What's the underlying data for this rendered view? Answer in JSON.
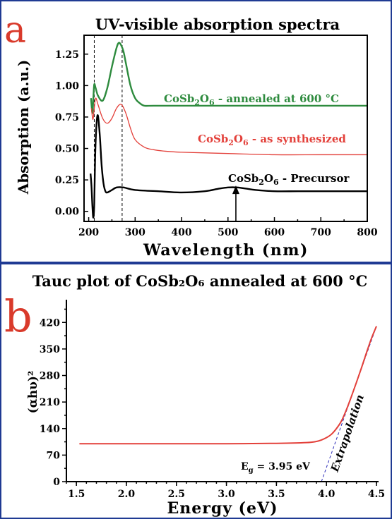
{
  "chart_data": [
    {
      "type": "line",
      "panel_label": "a",
      "title": "UV-visible absorption spectra",
      "xlabel": "Wavelength (nm)",
      "ylabel": "Absorption (a.u.)",
      "xlim": [
        190,
        800
      ],
      "ylim": [
        -0.08,
        1.4
      ],
      "xticks": [
        "200",
        "300",
        "400",
        "500",
        "600",
        "700",
        "800"
      ],
      "yticks": [
        "0.00",
        "0.25",
        "0.50",
        "0.75",
        "1.00",
        "1.25"
      ],
      "vlines": [
        212,
        272
      ],
      "arrow_at_x": 517,
      "series": [
        {
          "name": "CoSb2O6 - annealed at 600 °C",
          "label_main": "CoSb",
          "label_sub1": "2",
          "label_mid": "O",
          "label_sub2": "6",
          "label_tail": " - annealed at 600 °C",
          "color": "#2e8b3e",
          "x": [
            205,
            208,
            210,
            212,
            215,
            220,
            230,
            240,
            250,
            260,
            265,
            270,
            275,
            280,
            290,
            300,
            310,
            320,
            340,
            400,
            500,
            600,
            700,
            800
          ],
          "y": [
            0.9,
            0.78,
            0.9,
            1.01,
            0.98,
            0.92,
            0.88,
            0.98,
            1.15,
            1.3,
            1.34,
            1.32,
            1.27,
            1.18,
            1.0,
            0.9,
            0.86,
            0.84,
            0.84,
            0.84,
            0.84,
            0.84,
            0.84,
            0.84
          ]
        },
        {
          "name": "CoSb2O6 - as synthesized",
          "label_main": "CoSb",
          "label_sub1": "2",
          "label_mid": "O",
          "label_sub2": "6",
          "label_tail": " - as synthesized",
          "color": "#e3403a",
          "x": [
            206,
            209,
            212,
            215,
            220,
            230,
            240,
            250,
            260,
            270,
            280,
            290,
            300,
            320,
            340,
            360,
            400,
            500,
            600,
            700,
            800
          ],
          "y": [
            0.82,
            0.73,
            0.82,
            0.9,
            0.85,
            0.74,
            0.7,
            0.74,
            0.82,
            0.85,
            0.78,
            0.66,
            0.57,
            0.51,
            0.49,
            0.48,
            0.47,
            0.46,
            0.45,
            0.45,
            0.45
          ]
        },
        {
          "name": "CoSb2O6 - Precursor",
          "label_main": "CoSb",
          "label_sub1": "2",
          "label_mid": "O",
          "label_sub2": "6",
          "label_tail": " - Precursor",
          "color": "#000000",
          "x": [
            204,
            206,
            208,
            210,
            212,
            214,
            217,
            220,
            224,
            228,
            232,
            236,
            240,
            250,
            260,
            275,
            300,
            350,
            400,
            450,
            480,
            500,
            520,
            540,
            560,
            600,
            650,
            700,
            800
          ],
          "y": [
            0.3,
            0.2,
            0.04,
            -0.05,
            0.06,
            0.45,
            0.7,
            0.76,
            0.6,
            0.36,
            0.22,
            0.16,
            0.15,
            0.17,
            0.19,
            0.19,
            0.17,
            0.16,
            0.15,
            0.16,
            0.18,
            0.19,
            0.19,
            0.18,
            0.17,
            0.16,
            0.16,
            0.16,
            0.16
          ]
        }
      ]
    },
    {
      "type": "line",
      "panel_label": "b",
      "title": "Tauc plot of CoSb₂O₆ annealed at 600 °C",
      "xlabel": "Energy (eV)",
      "ylabel": "(αhυ)²",
      "xlim": [
        1.4,
        4.5
      ],
      "ylim": [
        0,
        480
      ],
      "xticks": [
        "1.5",
        "2.0",
        "2.5",
        "3.0",
        "3.5",
        "4.0",
        "4.5"
      ],
      "yticks": [
        "0",
        "70",
        "140",
        "210",
        "280",
        "350",
        "420"
      ],
      "annotation_eg": "E",
      "annotation_eg_sub": "g",
      "annotation_eg_val": " = 3.95 eV",
      "annotation_extrap": "Extrapolation",
      "extrapolation": {
        "x": [
          3.95,
          4.5
        ],
        "y": [
          0,
          410
        ]
      },
      "series": [
        {
          "color": "#e3403a",
          "x": [
            1.53,
            2.0,
            2.5,
            3.0,
            3.5,
            3.8,
            3.9,
            3.95,
            4.0,
            4.05,
            4.1,
            4.15,
            4.2,
            4.25,
            4.3,
            4.35,
            4.4,
            4.45,
            4.5
          ],
          "y": [
            100,
            100,
            100,
            100,
            101,
            103,
            106,
            110,
            116,
            125,
            140,
            160,
            190,
            225,
            262,
            300,
            340,
            378,
            410
          ]
        }
      ]
    }
  ]
}
